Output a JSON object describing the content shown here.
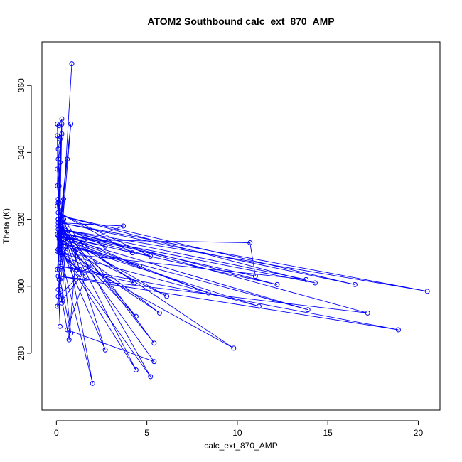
{
  "chart_data": {
    "type": "line",
    "title": "ATOM2 Southbound calc_ext_870_AMP",
    "xlabel": "calc_ext_870_AMP",
    "ylabel": "Theta (K)",
    "xlim": [
      -0.8,
      21.2
    ],
    "ylim": [
      263,
      373
    ],
    "xticks": [
      0,
      5,
      10,
      15,
      20
    ],
    "yticks": [
      280,
      300,
      320,
      340,
      360
    ],
    "grid": false,
    "marker": "open-circle",
    "colors": {
      "series": "#0000ff",
      "axes": "#000000"
    },
    "series": [
      {
        "x": [
          0.85,
          0.25,
          0.05,
          0.15,
          0.3,
          0.1,
          0.05,
          0.2,
          0.1,
          0.15,
          0.05,
          0.3,
          0.2,
          0.1,
          0.05,
          0.15,
          0.3,
          0.2,
          0.1,
          0.05,
          0.25,
          0.1,
          0.3,
          0.2,
          0.15,
          0.05,
          0.1,
          0.2,
          0.4,
          0.3,
          0.1,
          0.6,
          0.15,
          0.25,
          0.8,
          0.2,
          0.1,
          0.05,
          0.3,
          0.2,
          0.1,
          0.15,
          0.05,
          0.25,
          0.1,
          3.7,
          0.4,
          1.1,
          0.2,
          2.7,
          0.3,
          4.2,
          0.1,
          5.2,
          0.25,
          4.6,
          0.2,
          6.1,
          0.3,
          8.4,
          0.4,
          10.7,
          11.0,
          0.2,
          14.3,
          0.3,
          16.5,
          0.2,
          20.5,
          0.3,
          12.2,
          0.1,
          13.9,
          0.2,
          11.2,
          0.15,
          13.8,
          0.3,
          17.2,
          0.1,
          18.9,
          0.25,
          4.3,
          0.2,
          4.4,
          0.3,
          5.7,
          0.2,
          2.7,
          0.4,
          5.4,
          0.3,
          4.4,
          0.2,
          5.2,
          0.3,
          2.0,
          0.2,
          9.8,
          0.3,
          5.4,
          0.6,
          1.6,
          0.2,
          1.3,
          0.4,
          1.1,
          0.7,
          0.2,
          0.3,
          0.5,
          0.1,
          1.8,
          0.05,
          0.2,
          0.8,
          0.3,
          0.1,
          0.2,
          0.15
        ],
        "y": [
          366.5,
          312.0,
          348.5,
          348.0,
          350.0,
          320.0,
          345.0,
          344.0,
          341.0,
          330.0,
          335.0,
          345.5,
          337.0,
          338.0,
          330.0,
          325.0,
          348.5,
          322.5,
          317.0,
          315.5,
          344.5,
          326.0,
          315.0,
          322.5,
          314.0,
          310.5,
          320.0,
          321.0,
          326.0,
          316.0,
          311.0,
          338.0,
          315.5,
          322.0,
          348.5,
          310.0,
          325.0,
          324.0,
          313.0,
          307.0,
          318.0,
          302.0,
          305.0,
          316.5,
          319.0,
          318.0,
          311.0,
          305.0,
          318.0,
          312.0,
          315.0,
          310.0,
          322.0,
          309.0,
          316.0,
          306.0,
          313.0,
          297.0,
          315.0,
          298.0,
          314.0,
          313.0,
          303.0,
          316.0,
          301.0,
          321.0,
          300.5,
          319.0,
          298.5,
          317.0,
          300.5,
          315.0,
          293.0,
          313.0,
          294.0,
          310.0,
          302.0,
          317.0,
          292.0,
          303.0,
          287.0,
          306.0,
          301.0,
          318.0,
          291.0,
          314.0,
          292.0,
          312.0,
          281.0,
          320.0,
          283.0,
          318.0,
          275.0,
          311.0,
          273.0,
          320.0,
          271.0,
          310.0,
          281.5,
          316.0,
          277.5,
          287.0,
          303.0,
          310.0,
          305.0,
          316.0,
          311.0,
          284.0,
          299.0,
          295.0,
          312.0,
          297.0,
          306.0,
          294.0,
          302.0,
          286.0,
          310.0,
          299.0,
          288.0,
          305.0
        ]
      }
    ]
  }
}
